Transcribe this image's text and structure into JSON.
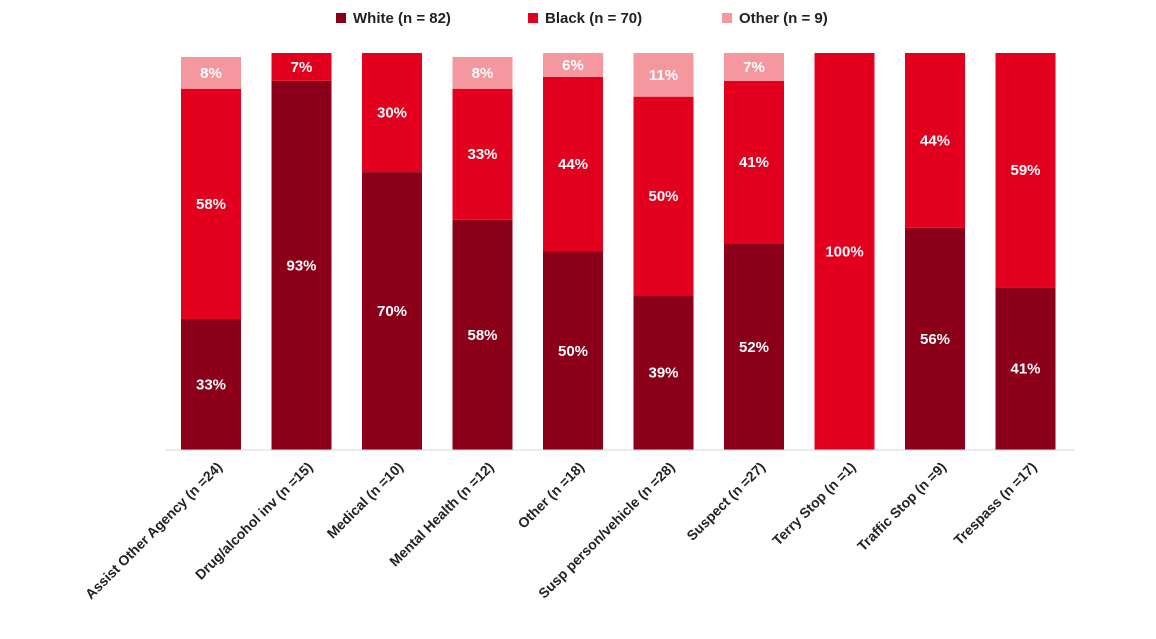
{
  "chart_data": {
    "type": "bar",
    "stacked": true,
    "percent": true,
    "legend_position": "top-center",
    "grid": false,
    "ylim": [
      0,
      100
    ],
    "categories": [
      "Assist Other Agency (n =24)",
      "Drug/alcohol inv (n =15)",
      "Medical (n =10)",
      "Mental Health (n =12)",
      "Other (n =18)",
      "Susp person/vehicle (n =28)",
      "Suspect (n =27)",
      "Terry Stop (n =1)",
      "Traffic Stop (n =9)",
      "Trespass (n =17)"
    ],
    "series": [
      {
        "name": "White (n =  82)",
        "color": "#8b0018",
        "values": [
          33,
          93,
          70,
          58,
          50,
          39,
          52,
          0,
          56,
          41
        ],
        "labels": [
          "33%",
          "93%",
          "70%",
          "58%",
          "50%",
          "39%",
          "52%",
          "",
          "56%",
          "41%"
        ]
      },
      {
        "name": "Black (n = 70)",
        "color": "#e3001f",
        "values": [
          58,
          7,
          30,
          33,
          44,
          50,
          41,
          100,
          44,
          59
        ],
        "labels": [
          "58%",
          "7%",
          "30%",
          "33%",
          "44%",
          "50%",
          "41%",
          "100%",
          "44%",
          "59%"
        ]
      },
      {
        "name": "Other (n = 9)",
        "color": "#f4979f",
        "values": [
          8,
          0,
          0,
          8,
          6,
          11,
          7,
          0,
          0,
          0
        ],
        "labels": [
          "8%",
          "",
          "",
          "8%",
          "6%",
          "11%",
          "7%",
          "",
          "",
          ""
        ]
      }
    ]
  }
}
